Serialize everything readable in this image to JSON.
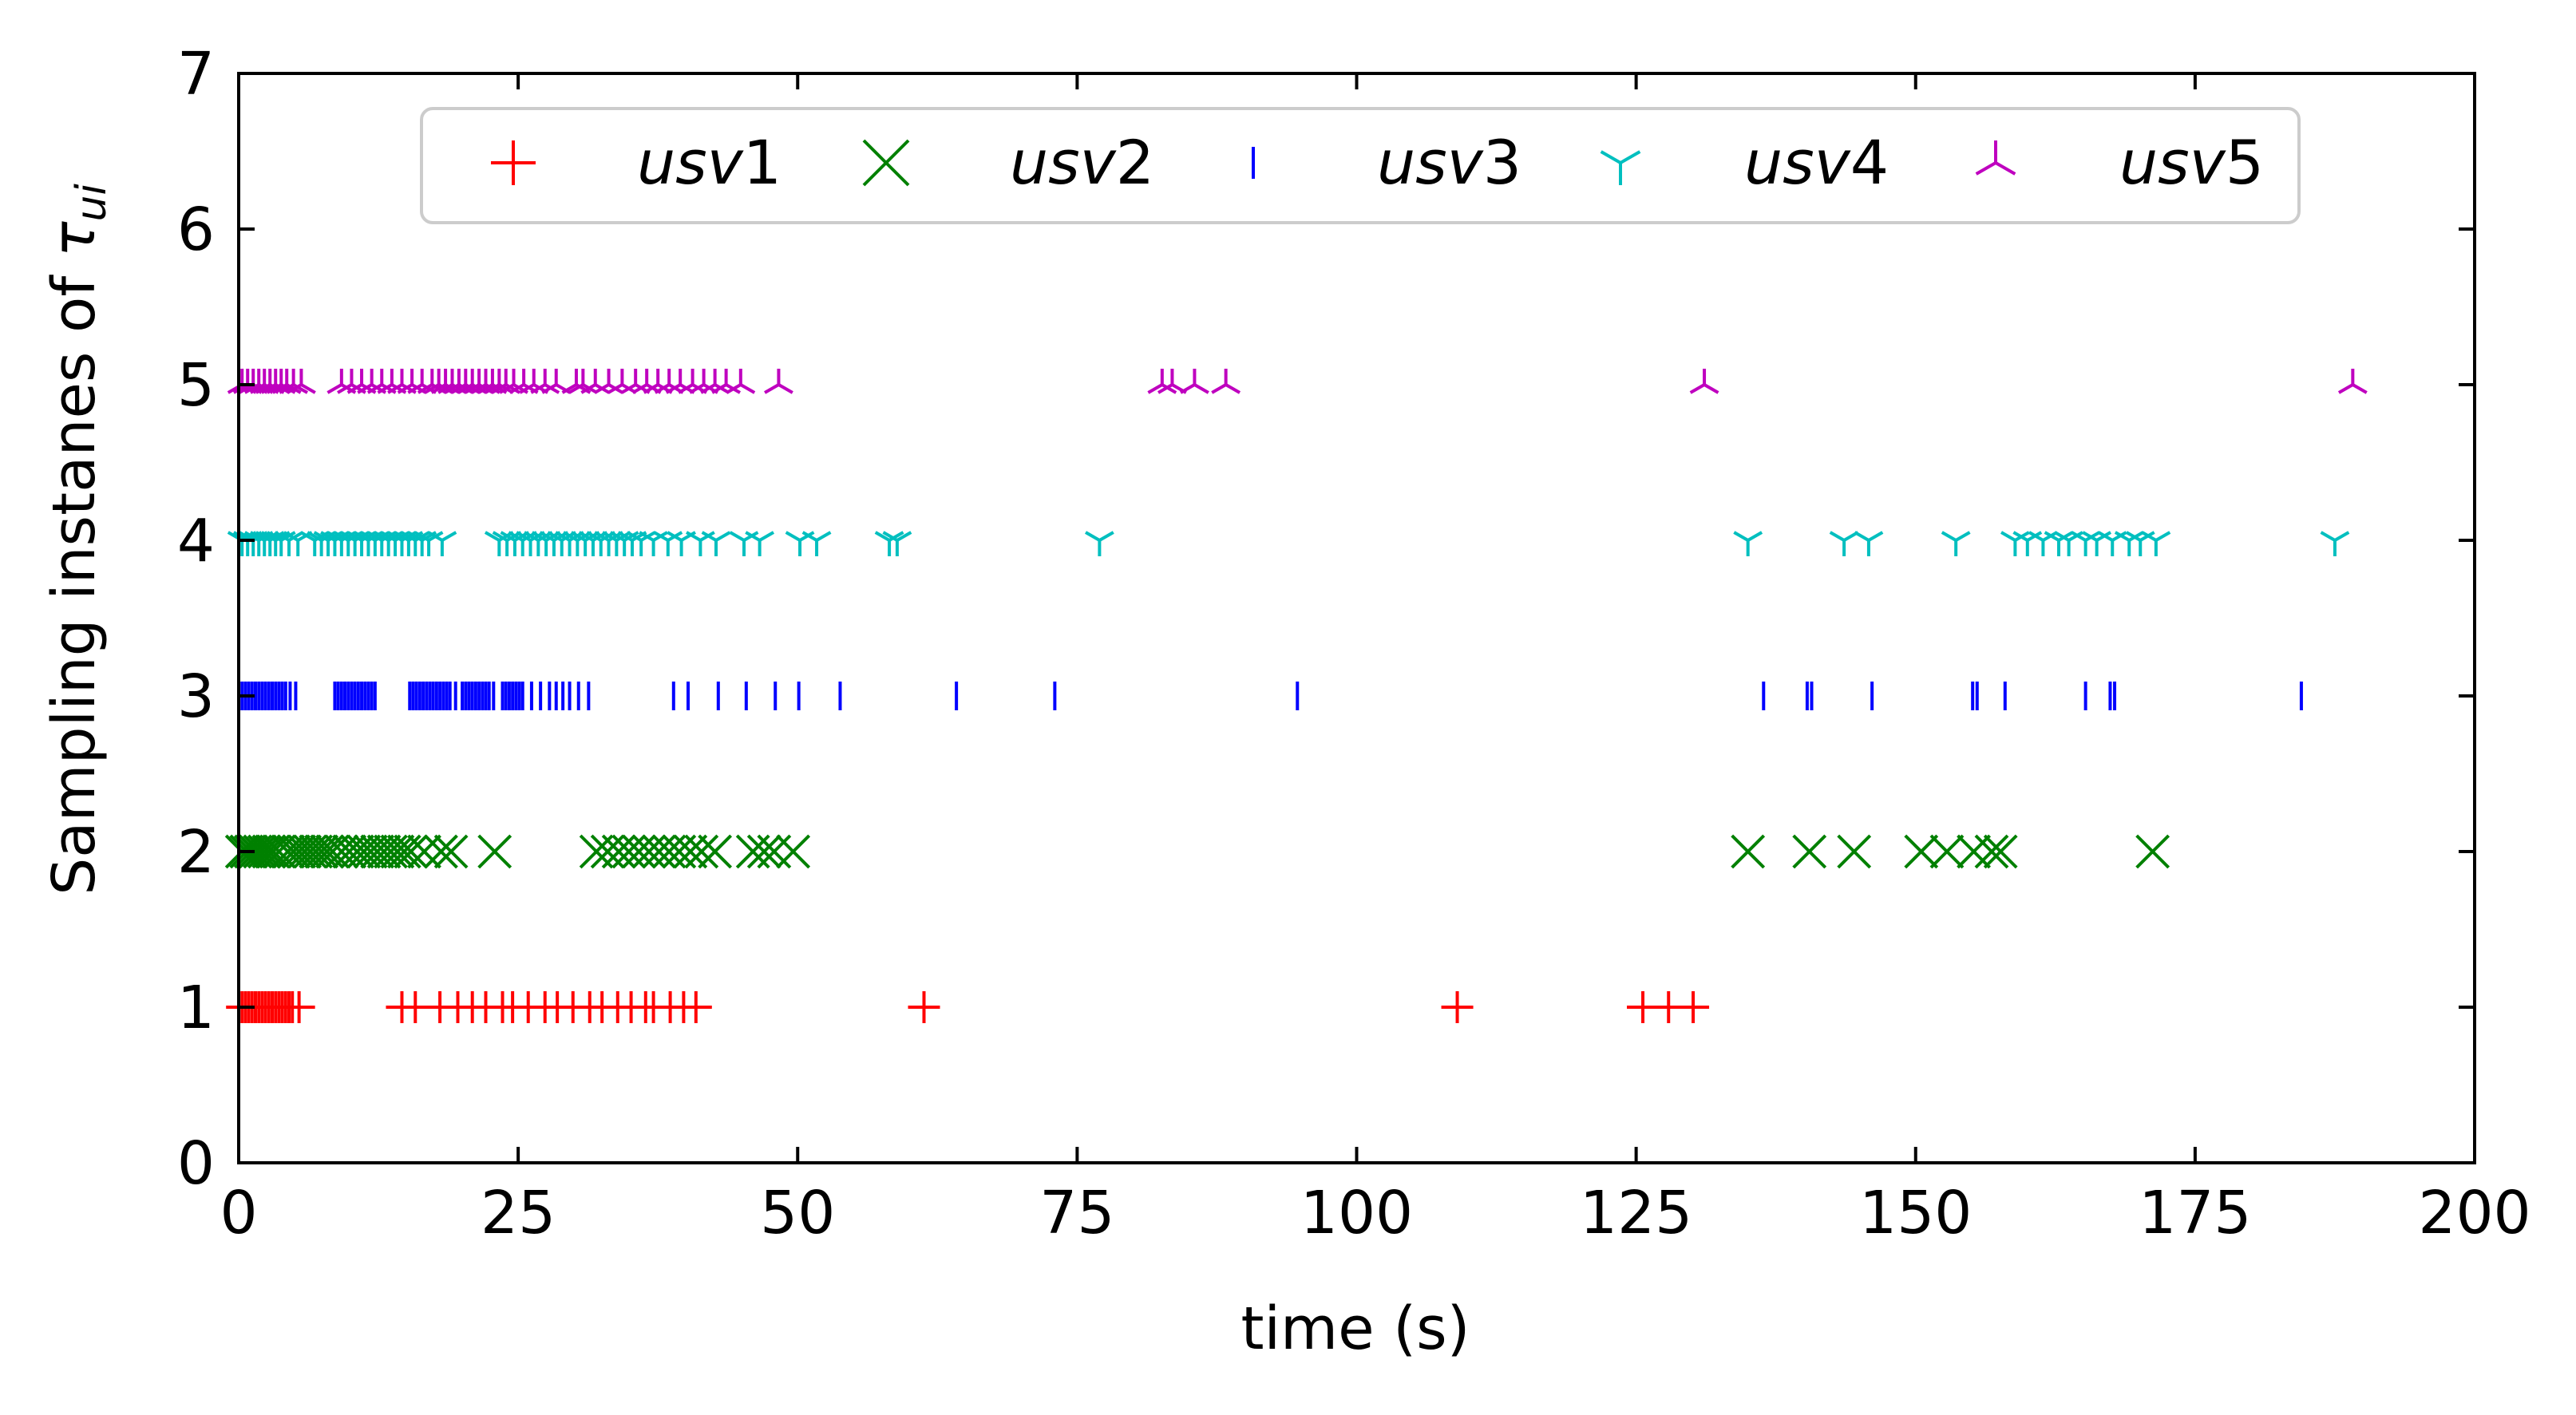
{
  "chart_data": {
    "type": "scatter",
    "xlabel": "time (s)",
    "ylabel_prefix": "Sampling instanes of ",
    "ylabel_symbol": "τ",
    "ylabel_subscript": "ui",
    "xlim": [
      0,
      200
    ],
    "ylim": [
      0,
      7
    ],
    "x_ticks": [
      "0",
      "25",
      "50",
      "75",
      "100",
      "125",
      "150",
      "175",
      "200"
    ],
    "y_ticks": [
      "0",
      "1",
      "2",
      "3",
      "4",
      "5",
      "6",
      "7"
    ],
    "grid": false,
    "legend_position": "top",
    "series": [
      {
        "name_base": "usv",
        "name_index": "1",
        "marker": "plus",
        "color": "#ff0000",
        "y": 1,
        "x": [
          0.3,
          0.6,
          0.9,
          1.2,
          1.5,
          1.8,
          2.1,
          2.4,
          2.7,
          3.0,
          3.3,
          3.6,
          3.9,
          4.2,
          4.5,
          4.8,
          5.4,
          14.6,
          15.8,
          18.0,
          19.6,
          20.9,
          22.1,
          23.6,
          24.5,
          25.9,
          27.4,
          28.5,
          29.9,
          31.4,
          32.5,
          33.9,
          35.1,
          36.4,
          37.1,
          38.6,
          39.8,
          40.9,
          61.3,
          109.0,
          125.6,
          127.9,
          130.1
        ]
      },
      {
        "name_base": "usv",
        "name_index": "2",
        "marker": "x",
        "color": "#008000",
        "y": 2,
        "x": [
          0.3,
          0.7,
          1.1,
          1.5,
          1.9,
          2.3,
          2.7,
          3.1,
          3.6,
          4.4,
          4.9,
          5.4,
          5.9,
          6.4,
          6.9,
          7.4,
          7.9,
          8.4,
          9.2,
          9.9,
          10.6,
          11.2,
          11.8,
          12.4,
          13.0,
          13.6,
          14.2,
          14.8,
          15.4,
          16.6,
          18.1,
          19.0,
          22.9,
          32.0,
          33.0,
          34.0,
          34.9,
          35.8,
          36.7,
          37.6,
          38.5,
          39.4,
          40.4,
          41.4,
          42.6,
          46.0,
          47.0,
          47.9,
          49.6,
          135.0,
          140.5,
          144.5,
          150.5,
          152.8,
          155.2,
          156.8,
          157.6,
          171.2
        ]
      },
      {
        "name_base": "usv",
        "name_index": "3",
        "marker": "vline",
        "color": "#0000ff",
        "y": 3,
        "x": [
          0.3,
          0.6,
          0.9,
          1.2,
          1.5,
          1.8,
          2.1,
          2.4,
          2.7,
          3.0,
          3.3,
          3.6,
          3.9,
          4.2,
          4.6,
          5.1,
          8.6,
          8.9,
          9.2,
          9.5,
          9.8,
          10.1,
          10.4,
          10.7,
          11.0,
          11.3,
          11.6,
          11.9,
          12.2,
          15.3,
          15.6,
          15.9,
          16.2,
          16.5,
          16.8,
          17.1,
          17.4,
          17.7,
          18.0,
          18.3,
          18.6,
          18.9,
          19.4,
          20.0,
          20.3,
          20.6,
          20.9,
          21.2,
          21.5,
          21.8,
          22.1,
          22.4,
          22.8,
          23.6,
          23.9,
          24.2,
          24.5,
          24.8,
          25.1,
          25.4,
          26.2,
          27.0,
          27.8,
          28.4,
          29.0,
          29.6,
          30.4,
          31.3,
          38.9,
          40.2,
          42.9,
          45.4,
          48.0,
          50.1,
          53.8,
          64.2,
          73.0,
          94.7,
          136.4,
          140.3,
          140.7,
          146.1,
          155.1,
          155.5,
          158.0,
          165.2,
          167.4,
          167.8,
          184.5
        ]
      },
      {
        "name_base": "usv",
        "name_index": "4",
        "marker": "tri_down",
        "color": "#00bfbf",
        "y": 4,
        "x": [
          0.3,
          0.8,
          1.3,
          1.8,
          2.3,
          2.8,
          3.3,
          3.8,
          4.5,
          5.3,
          6.8,
          7.4,
          8.0,
          8.6,
          9.2,
          9.8,
          10.4,
          11.0,
          11.6,
          12.2,
          12.8,
          13.4,
          14.0,
          14.6,
          15.2,
          15.8,
          16.4,
          17.0,
          18.2,
          23.3,
          24.0,
          24.7,
          25.4,
          26.1,
          26.8,
          27.5,
          28.2,
          28.9,
          29.6,
          30.3,
          31.0,
          31.7,
          32.4,
          33.1,
          33.8,
          34.5,
          35.2,
          36.0,
          37.1,
          38.4,
          39.6,
          41.3,
          42.7,
          45.2,
          46.6,
          50.2,
          51.7,
          58.2,
          58.9,
          77.0,
          135.0,
          143.6,
          145.8,
          153.6,
          158.9,
          160.0,
          161.4,
          162.8,
          163.7,
          165.2,
          166.2,
          167.6,
          169.1,
          170.1,
          171.5,
          187.5
        ]
      },
      {
        "name_base": "usv",
        "name_index": "5",
        "marker": "tri_up",
        "color": "#bf00bf",
        "y": 5,
        "x": [
          0.3,
          0.8,
          1.3,
          1.8,
          2.3,
          2.8,
          3.3,
          3.8,
          4.3,
          4.9,
          5.6,
          9.2,
          10.1,
          11.0,
          11.9,
          12.8,
          13.7,
          14.6,
          15.5,
          16.4,
          17.3,
          17.9,
          18.5,
          19.1,
          19.7,
          20.3,
          20.9,
          21.5,
          22.1,
          22.7,
          23.3,
          23.9,
          24.6,
          25.5,
          26.4,
          27.4,
          28.4,
          30.2,
          30.8,
          31.9,
          33.1,
          34.3,
          35.5,
          36.5,
          37.5,
          38.5,
          39.5,
          40.6,
          41.6,
          42.6,
          43.6,
          44.9,
          48.3,
          82.6,
          83.5,
          85.5,
          88.3,
          131.1,
          189.1
        ]
      }
    ]
  }
}
